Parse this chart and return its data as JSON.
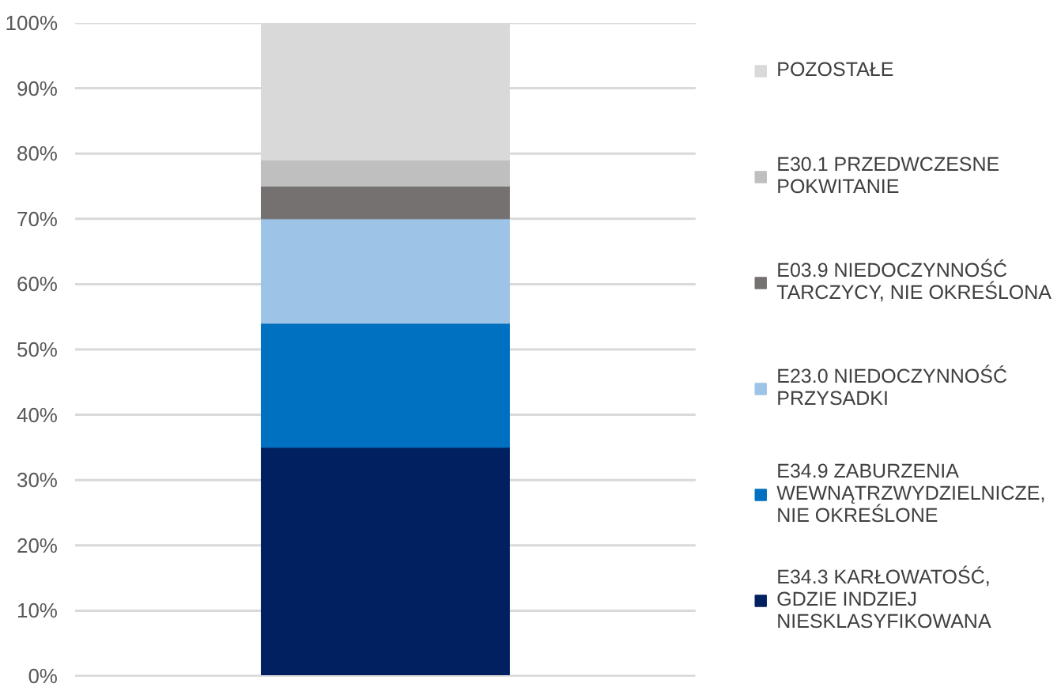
{
  "chart_data": {
    "type": "bar",
    "stacked": true,
    "categories": [
      null
    ],
    "series": [
      {
        "name": "E34.3 KARŁOWATOŚĆ, GDZIE INDZIEJ NIESKLASYFIKOWANA",
        "color": "#002060",
        "values": [
          35
        ]
      },
      {
        "name": "E34.9 ZABURZENIA WEWNĄTRZWYDZIELNICZE, NIE OKREŚLONE",
        "color": "#0070c0",
        "values": [
          19
        ]
      },
      {
        "name": "E23.0 NIEDOCZYNNOŚĆ PRZYSADKI",
        "color": "#9dc3e6",
        "values": [
          16
        ]
      },
      {
        "name": "E03.9 NIEDOCZYNNOŚĆ TARCZYCY, NIE OKREŚLONA",
        "color": "#767171",
        "values": [
          5
        ]
      },
      {
        "name": "E30.1 PRZEDWCZESNE POKWITANIE",
        "color": "#bfbfbf",
        "values": [
          4
        ]
      },
      {
        "name": "POZOSTAŁE",
        "color": "#d9d9d9",
        "values": [
          21
        ]
      }
    ],
    "ylim": [
      0,
      100
    ],
    "yticks": [
      {
        "value": 0,
        "label": "0%"
      },
      {
        "value": 10,
        "label": "10%"
      },
      {
        "value": 20,
        "label": "20%"
      },
      {
        "value": 30,
        "label": "30%"
      },
      {
        "value": 40,
        "label": "40%"
      },
      {
        "value": 50,
        "label": "50%"
      },
      {
        "value": 60,
        "label": "60%"
      },
      {
        "value": 70,
        "label": "70%"
      },
      {
        "value": 80,
        "label": "80%"
      },
      {
        "value": 90,
        "label": "90%"
      },
      {
        "value": 100,
        "label": "100%"
      }
    ],
    "grid": "y",
    "legend": "right"
  }
}
